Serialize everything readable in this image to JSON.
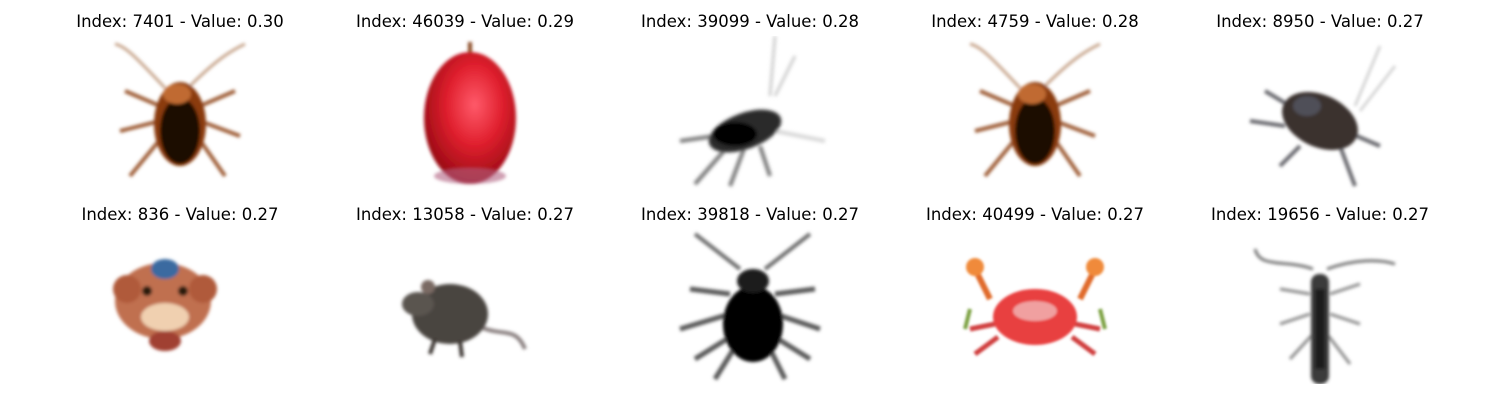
{
  "figure": {
    "panels": [
      {
        "title": "Index: 7401 - Value: 0.30",
        "image": "cockroach-image"
      },
      {
        "title": "Index: 46039 - Value: 0.29",
        "image": "apple-image"
      },
      {
        "title": "Index: 39099 - Value: 0.28",
        "image": "insect-image"
      },
      {
        "title": "Index: 4759 - Value: 0.28",
        "image": "cockroach-image"
      },
      {
        "title": "Index: 8950 - Value: 0.27",
        "image": "beetle-image"
      },
      {
        "title": "Index: 836 - Value: 0.27",
        "image": "crab-mask-image"
      },
      {
        "title": "Index: 13058 - Value: 0.27",
        "image": "mouse-image"
      },
      {
        "title": "Index: 39818 - Value: 0.27",
        "image": "spider-beetle-image"
      },
      {
        "title": "Index: 40499 - Value: 0.27",
        "image": "crab-image"
      },
      {
        "title": "Index: 19656 - Value: 0.27",
        "image": "longhorn-beetle-image"
      }
    ]
  }
}
